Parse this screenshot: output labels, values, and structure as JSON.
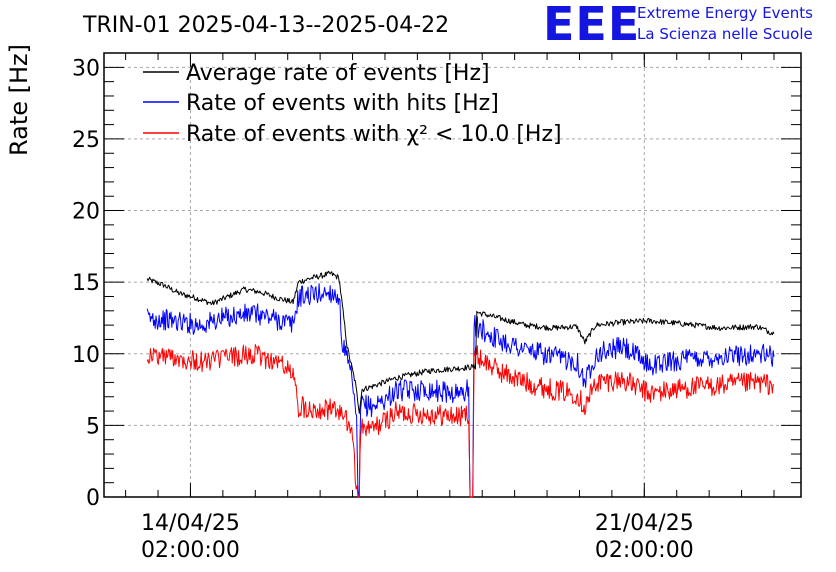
{
  "header": {
    "title": "TRIN-01 2025-04-13--2025-04-22",
    "logo_text": "EEE",
    "logo_line1": "Extreme Energy Events",
    "logo_line2": "La Scienza nelle Scuole"
  },
  "chart_data": {
    "type": "line",
    "title": "TRIN-01 2025-04-13--2025-04-22",
    "xlabel": "",
    "ylabel": "Rate [Hz]",
    "ylim": [
      0,
      31
    ],
    "yticks": [
      0,
      5,
      10,
      15,
      20,
      25,
      30
    ],
    "xlim": [
      "2025-04-12 18:00:00",
      "2025-04-23 12:00:00"
    ],
    "xticks": [
      {
        "date": "2025-04-14 02:00:00",
        "label_line1": "14/04/25",
        "label_line2": "02:00:00"
      },
      {
        "date": "2025-04-21 02:00:00",
        "label_line1": "21/04/25",
        "label_line2": "02:00:00"
      }
    ],
    "grid": true,
    "legend_position": "top-left",
    "series": [
      {
        "name": "Average rate of events [Hz]",
        "color": "#000000",
        "noise": 0.2,
        "points": [
          [
            "2025-04-13 10:00",
            15.2
          ],
          [
            "2025-04-13 16:00",
            14.8
          ],
          [
            "2025-04-13 22:00",
            14.2
          ],
          [
            "2025-04-14 04:00",
            13.9
          ],
          [
            "2025-04-14 10:00",
            13.5
          ],
          [
            "2025-04-14 16:00",
            14.0
          ],
          [
            "2025-04-14 22:00",
            14.5
          ],
          [
            "2025-04-15 04:00",
            14.3
          ],
          [
            "2025-04-15 10:00",
            13.9
          ],
          [
            "2025-04-15 16:00",
            13.6
          ],
          [
            "2025-04-15 18:00",
            15.0
          ],
          [
            "2025-04-15 23:00",
            15.3
          ],
          [
            "2025-04-16 06:00",
            15.6
          ],
          [
            "2025-04-16 09:00",
            15.3
          ],
          [
            "2025-04-16 12:00",
            10.5
          ],
          [
            "2025-04-16 15:00",
            8.0
          ],
          [
            "2025-04-16 16:30",
            6.0
          ],
          [
            "2025-04-16 17:30",
            7.5
          ],
          [
            "2025-04-16 21:00",
            7.7
          ],
          [
            "2025-04-17 06:00",
            8.3
          ],
          [
            "2025-04-17 18:00",
            8.8
          ],
          [
            "2025-04-18 06:00",
            9.0
          ],
          [
            "2025-04-18 11:30",
            9.1
          ],
          [
            "2025-04-18 12:00",
            12.9
          ],
          [
            "2025-04-18 20:00",
            12.5
          ],
          [
            "2025-04-19 06:00",
            12.0
          ],
          [
            "2025-04-19 16:00",
            11.8
          ],
          [
            "2025-04-20 01:00",
            11.9
          ],
          [
            "2025-04-20 04:00",
            10.8
          ],
          [
            "2025-04-20 08:00",
            12.0
          ],
          [
            "2025-04-20 18:00",
            12.2
          ],
          [
            "2025-04-21 04:00",
            12.3
          ],
          [
            "2025-04-21 16:00",
            12.1
          ],
          [
            "2025-04-22 06:00",
            11.8
          ],
          [
            "2025-04-22 20:00",
            11.9
          ],
          [
            "2025-04-23 02:00",
            11.4
          ]
        ]
      },
      {
        "name": "Rate of events with hits [Hz]",
        "color": "#0000ff",
        "noise": 0.75,
        "points": [
          [
            "2025-04-13 10:00",
            12.5
          ],
          [
            "2025-04-13 20:00",
            12.3
          ],
          [
            "2025-04-14 06:00",
            12.0
          ],
          [
            "2025-04-14 16:00",
            12.6
          ],
          [
            "2025-04-15 02:00",
            12.8
          ],
          [
            "2025-04-15 12:00",
            12.3
          ],
          [
            "2025-04-15 16:00",
            12.0
          ],
          [
            "2025-04-15 18:00",
            14.0
          ],
          [
            "2025-04-16 06:00",
            14.3
          ],
          [
            "2025-04-16 09:00",
            14.0
          ],
          [
            "2025-04-16 10:00",
            11.0
          ],
          [
            "2025-04-16 12:00",
            9.5
          ],
          [
            "2025-04-16 14:00",
            8.0
          ],
          [
            "2025-04-16 15:30",
            5.0
          ],
          [
            "2025-04-16 16:00",
            0.3
          ],
          [
            "2025-04-16 16:30",
            0.0
          ],
          [
            "2025-04-16 17:00",
            6.5
          ],
          [
            "2025-04-16 21:00",
            6.3
          ],
          [
            "2025-04-17 02:00",
            6.8
          ],
          [
            "2025-04-17 06:00",
            7.4
          ],
          [
            "2025-04-17 18:00",
            7.5
          ],
          [
            "2025-04-18 06:00",
            7.2
          ],
          [
            "2025-04-18 09:00",
            7.6
          ],
          [
            "2025-04-18 09:30",
            0.0
          ],
          [
            "2025-04-18 10:30",
            0.0
          ],
          [
            "2025-04-18 11:00",
            12.0
          ],
          [
            "2025-04-18 20:00",
            11.0
          ],
          [
            "2025-04-19 06:00",
            10.3
          ],
          [
            "2025-04-19 16:00",
            9.8
          ],
          [
            "2025-04-20 01:00",
            9.5
          ],
          [
            "2025-04-20 04:00",
            8.0
          ],
          [
            "2025-04-20 08:00",
            10.0
          ],
          [
            "2025-04-20 18:00",
            10.5
          ],
          [
            "2025-04-21 04:00",
            9.2
          ],
          [
            "2025-04-21 16:00",
            9.6
          ],
          [
            "2025-04-22 06:00",
            9.8
          ],
          [
            "2025-04-22 20:00",
            10.0
          ],
          [
            "2025-04-23 02:00",
            9.8
          ]
        ]
      },
      {
        "name": "Rate of events with χ² < 10.0 [Hz]",
        "color": "#ff0000",
        "noise": 0.75,
        "points": [
          [
            "2025-04-13 10:00",
            9.9
          ],
          [
            "2025-04-13 20:00",
            9.8
          ],
          [
            "2025-04-14 06:00",
            9.4
          ],
          [
            "2025-04-14 16:00",
            9.8
          ],
          [
            "2025-04-15 02:00",
            9.9
          ],
          [
            "2025-04-15 12:00",
            9.3
          ],
          [
            "2025-04-15 16:00",
            8.5
          ],
          [
            "2025-04-15 18:00",
            6.3
          ],
          [
            "2025-04-16 06:00",
            6.1
          ],
          [
            "2025-04-16 09:00",
            6.0
          ],
          [
            "2025-04-16 12:00",
            5.2
          ],
          [
            "2025-04-16 14:00",
            4.6
          ],
          [
            "2025-04-16 15:00",
            1.5
          ],
          [
            "2025-04-16 16:00",
            0.0
          ],
          [
            "2025-04-16 16:30",
            0.0
          ],
          [
            "2025-04-16 17:00",
            4.8
          ],
          [
            "2025-04-16 21:00",
            4.7
          ],
          [
            "2025-04-17 02:00",
            5.3
          ],
          [
            "2025-04-17 06:00",
            5.9
          ],
          [
            "2025-04-17 18:00",
            5.8
          ],
          [
            "2025-04-18 06:00",
            5.6
          ],
          [
            "2025-04-18 09:00",
            5.9
          ],
          [
            "2025-04-18 09:30",
            0.0
          ],
          [
            "2025-04-18 10:30",
            0.0
          ],
          [
            "2025-04-18 11:00",
            10.0
          ],
          [
            "2025-04-18 20:00",
            8.8
          ],
          [
            "2025-04-19 06:00",
            8.0
          ],
          [
            "2025-04-19 16:00",
            7.5
          ],
          [
            "2025-04-20 01:00",
            7.2
          ],
          [
            "2025-04-20 04:00",
            6.3
          ],
          [
            "2025-04-20 08:00",
            8.0
          ],
          [
            "2025-04-20 18:00",
            8.2
          ],
          [
            "2025-04-21 04:00",
            7.2
          ],
          [
            "2025-04-21 16:00",
            7.6
          ],
          [
            "2025-04-22 06:00",
            7.8
          ],
          [
            "2025-04-22 20:00",
            8.0
          ],
          [
            "2025-04-23 02:00",
            7.8
          ]
        ]
      }
    ]
  }
}
